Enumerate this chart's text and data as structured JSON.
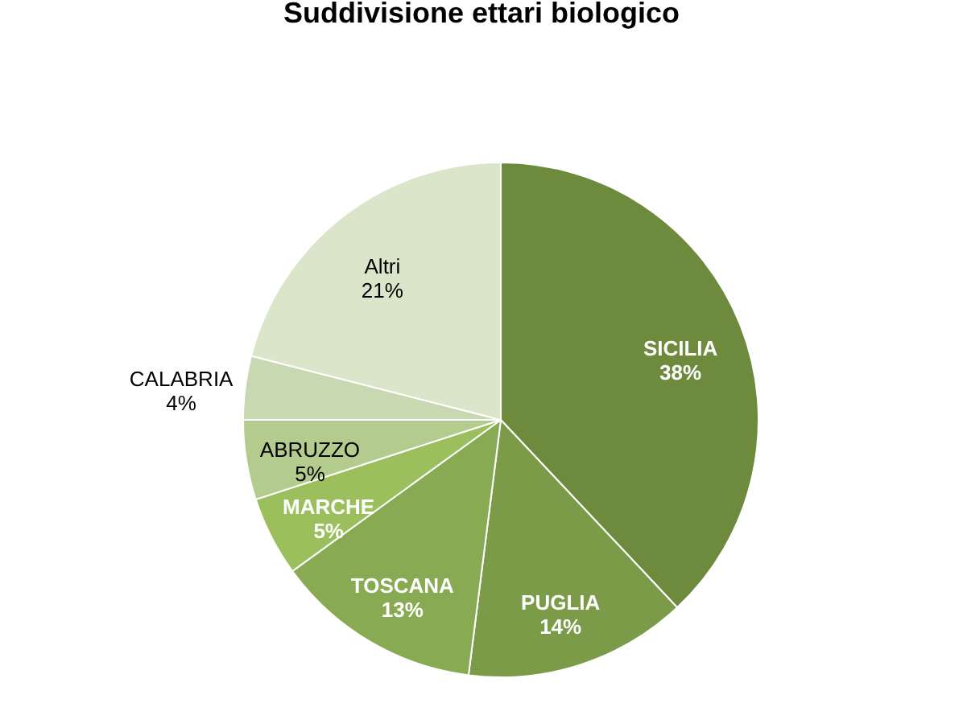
{
  "chart_data": {
    "type": "pie",
    "title": "Suddivisione  ettari biologico",
    "categories": [
      "SICILIA",
      "PUGLIA",
      "TOSCANA",
      "MARCHE",
      "ABRUZZO",
      "CALABRIA",
      "Altri"
    ],
    "values": [
      38,
      14,
      13,
      5,
      5,
      4,
      21
    ],
    "value_labels": [
      "38%",
      "14%",
      "13%",
      "5%",
      "5%",
      "4%",
      "21%"
    ],
    "colors": [
      "#6e8b3d",
      "#7c9b48",
      "#88aa52",
      "#9bbf5d",
      "#b3cb8c",
      "#c8d8b0",
      "#dbe5ca"
    ]
  }
}
